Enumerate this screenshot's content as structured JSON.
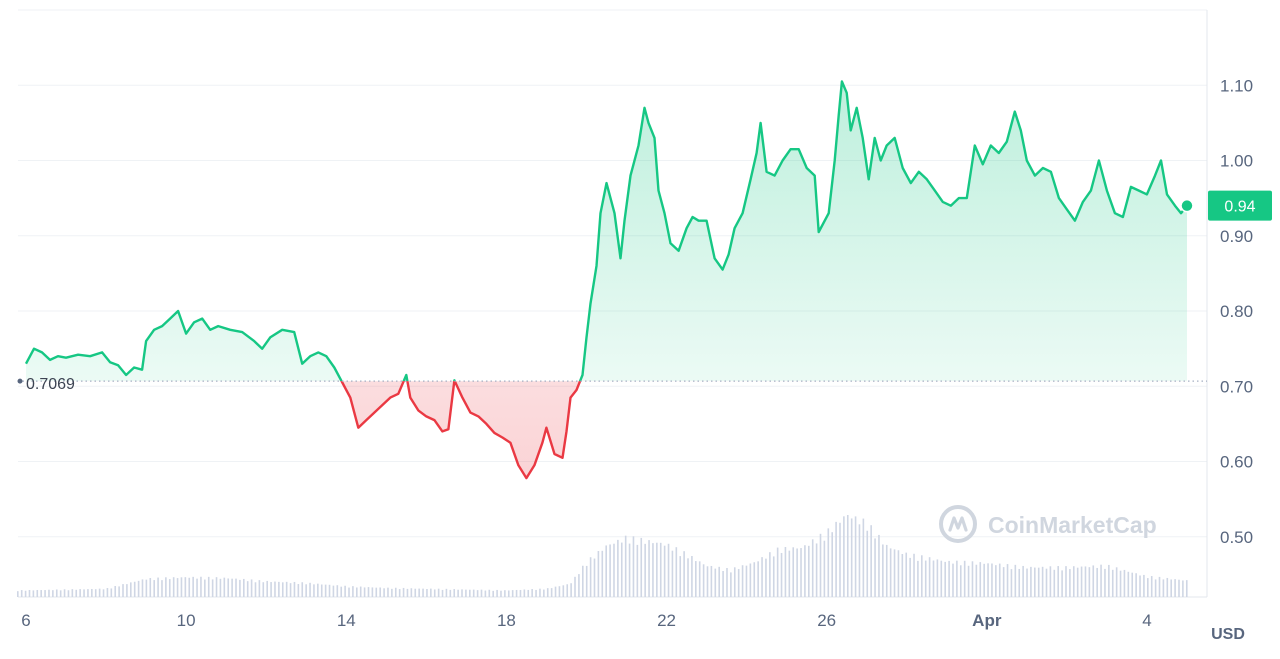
{
  "chart_data": {
    "type": "area",
    "unit_label": "USD",
    "reference_line": {
      "value": 0.7069,
      "label": "0.7069"
    },
    "current_price": {
      "value": 0.94,
      "label": "0.94"
    },
    "ylim": [
      0.42,
      1.2
    ],
    "y_ticks": [
      "0.50",
      "0.60",
      "0.70",
      "0.80",
      "0.90",
      "1.00",
      "1.10"
    ],
    "y_tick_values": [
      0.5,
      0.6,
      0.7,
      0.8,
      0.9,
      1.0,
      1.1
    ],
    "x_ticks": [
      {
        "label": "6",
        "day": 6,
        "bold": false
      },
      {
        "label": "10",
        "day": 10,
        "bold": false
      },
      {
        "label": "14",
        "day": 14,
        "bold": false
      },
      {
        "label": "18",
        "day": 18,
        "bold": false
      },
      {
        "label": "22",
        "day": 22,
        "bold": false
      },
      {
        "label": "26",
        "day": 26,
        "bold": false
      },
      {
        "label": "Apr",
        "day": 30,
        "bold": true
      },
      {
        "label": "4",
        "day": 34,
        "bold": false
      }
    ],
    "xlim": [
      5.8,
      35.5
    ],
    "colors": {
      "up": "#16c784",
      "down": "#ea3943",
      "volume": "#cfd6e4",
      "grid": "#eff2f5"
    },
    "watermark": "CoinMarketCap",
    "price_series": [
      [
        6.0,
        0.73
      ],
      [
        6.2,
        0.75
      ],
      [
        6.4,
        0.745
      ],
      [
        6.6,
        0.735
      ],
      [
        6.8,
        0.74
      ],
      [
        7.0,
        0.738
      ],
      [
        7.3,
        0.742
      ],
      [
        7.6,
        0.74
      ],
      [
        7.9,
        0.745
      ],
      [
        8.1,
        0.732
      ],
      [
        8.3,
        0.728
      ],
      [
        8.5,
        0.715
      ],
      [
        8.7,
        0.725
      ],
      [
        8.9,
        0.722
      ],
      [
        9.0,
        0.76
      ],
      [
        9.2,
        0.775
      ],
      [
        9.4,
        0.78
      ],
      [
        9.6,
        0.79
      ],
      [
        9.8,
        0.8
      ],
      [
        10.0,
        0.77
      ],
      [
        10.2,
        0.785
      ],
      [
        10.4,
        0.79
      ],
      [
        10.6,
        0.775
      ],
      [
        10.8,
        0.78
      ],
      [
        11.1,
        0.775
      ],
      [
        11.4,
        0.772
      ],
      [
        11.7,
        0.76
      ],
      [
        11.9,
        0.75
      ],
      [
        12.1,
        0.765
      ],
      [
        12.4,
        0.775
      ],
      [
        12.7,
        0.772
      ],
      [
        12.9,
        0.73
      ],
      [
        13.1,
        0.74
      ],
      [
        13.3,
        0.745
      ],
      [
        13.5,
        0.74
      ],
      [
        13.7,
        0.725
      ],
      [
        13.9,
        0.705
      ],
      [
        14.1,
        0.685
      ],
      [
        14.3,
        0.645
      ],
      [
        14.5,
        0.655
      ],
      [
        14.7,
        0.665
      ],
      [
        14.9,
        0.675
      ],
      [
        15.1,
        0.685
      ],
      [
        15.3,
        0.69
      ],
      [
        15.5,
        0.715
      ],
      [
        15.6,
        0.685
      ],
      [
        15.8,
        0.668
      ],
      [
        16.0,
        0.66
      ],
      [
        16.2,
        0.655
      ],
      [
        16.4,
        0.64
      ],
      [
        16.55,
        0.643
      ],
      [
        16.7,
        0.708
      ],
      [
        16.9,
        0.685
      ],
      [
        17.1,
        0.665
      ],
      [
        17.3,
        0.66
      ],
      [
        17.5,
        0.65
      ],
      [
        17.7,
        0.638
      ],
      [
        17.9,
        0.632
      ],
      [
        18.1,
        0.625
      ],
      [
        18.3,
        0.595
      ],
      [
        18.5,
        0.578
      ],
      [
        18.7,
        0.595
      ],
      [
        18.9,
        0.625
      ],
      [
        19.0,
        0.645
      ],
      [
        19.2,
        0.61
      ],
      [
        19.4,
        0.605
      ],
      [
        19.5,
        0.64
      ],
      [
        19.6,
        0.685
      ],
      [
        19.75,
        0.695
      ],
      [
        19.9,
        0.715
      ],
      [
        20.0,
        0.765
      ],
      [
        20.1,
        0.81
      ],
      [
        20.25,
        0.86
      ],
      [
        20.35,
        0.93
      ],
      [
        20.5,
        0.97
      ],
      [
        20.7,
        0.93
      ],
      [
        20.85,
        0.87
      ],
      [
        20.95,
        0.92
      ],
      [
        21.1,
        0.98
      ],
      [
        21.3,
        1.02
      ],
      [
        21.45,
        1.07
      ],
      [
        21.55,
        1.05
      ],
      [
        21.7,
        1.03
      ],
      [
        21.8,
        0.96
      ],
      [
        21.95,
        0.93
      ],
      [
        22.1,
        0.89
      ],
      [
        22.3,
        0.88
      ],
      [
        22.5,
        0.91
      ],
      [
        22.65,
        0.925
      ],
      [
        22.8,
        0.92
      ],
      [
        23.0,
        0.92
      ],
      [
        23.2,
        0.87
      ],
      [
        23.4,
        0.855
      ],
      [
        23.55,
        0.875
      ],
      [
        23.7,
        0.91
      ],
      [
        23.9,
        0.93
      ],
      [
        24.1,
        0.975
      ],
      [
        24.25,
        1.01
      ],
      [
        24.35,
        1.05
      ],
      [
        24.5,
        0.985
      ],
      [
        24.7,
        0.98
      ],
      [
        24.9,
        1.0
      ],
      [
        25.1,
        1.015
      ],
      [
        25.3,
        1.015
      ],
      [
        25.5,
        0.99
      ],
      [
        25.7,
        0.98
      ],
      [
        25.8,
        0.905
      ],
      [
        25.9,
        0.915
      ],
      [
        26.05,
        0.93
      ],
      [
        26.2,
        1.0
      ],
      [
        26.3,
        1.06
      ],
      [
        26.38,
        1.105
      ],
      [
        26.5,
        1.09
      ],
      [
        26.6,
        1.04
      ],
      [
        26.75,
        1.07
      ],
      [
        26.9,
        1.03
      ],
      [
        27.05,
        0.975
      ],
      [
        27.2,
        1.03
      ],
      [
        27.35,
        1.0
      ],
      [
        27.5,
        1.02
      ],
      [
        27.7,
        1.03
      ],
      [
        27.9,
        0.99
      ],
      [
        28.1,
        0.97
      ],
      [
        28.3,
        0.985
      ],
      [
        28.5,
        0.975
      ],
      [
        28.7,
        0.96
      ],
      [
        28.9,
        0.945
      ],
      [
        29.1,
        0.94
      ],
      [
        29.3,
        0.95
      ],
      [
        29.5,
        0.95
      ],
      [
        29.7,
        1.02
      ],
      [
        29.9,
        0.995
      ],
      [
        30.1,
        1.02
      ],
      [
        30.3,
        1.01
      ],
      [
        30.5,
        1.025
      ],
      [
        30.7,
        1.065
      ],
      [
        30.85,
        1.04
      ],
      [
        31.0,
        1.0
      ],
      [
        31.2,
        0.98
      ],
      [
        31.4,
        0.99
      ],
      [
        31.6,
        0.985
      ],
      [
        31.8,
        0.95
      ],
      [
        32.0,
        0.935
      ],
      [
        32.2,
        0.92
      ],
      [
        32.4,
        0.945
      ],
      [
        32.6,
        0.96
      ],
      [
        32.8,
        1.0
      ],
      [
        33.0,
        0.96
      ],
      [
        33.2,
        0.93
      ],
      [
        33.4,
        0.925
      ],
      [
        33.6,
        0.965
      ],
      [
        33.8,
        0.96
      ],
      [
        34.0,
        0.955
      ],
      [
        34.2,
        0.98
      ],
      [
        34.35,
        1.0
      ],
      [
        34.5,
        0.955
      ],
      [
        34.7,
        0.94
      ],
      [
        34.85,
        0.93
      ],
      [
        35.0,
        0.94
      ]
    ],
    "volume_series": [
      [
        5.8,
        0.08
      ],
      [
        7.0,
        0.09
      ],
      [
        8.0,
        0.1
      ],
      [
        9.0,
        0.22
      ],
      [
        10.0,
        0.24
      ],
      [
        11.0,
        0.23
      ],
      [
        12.0,
        0.19
      ],
      [
        13.0,
        0.17
      ],
      [
        14.0,
        0.13
      ],
      [
        15.0,
        0.11
      ],
      [
        16.0,
        0.1
      ],
      [
        17.0,
        0.09
      ],
      [
        18.0,
        0.08
      ],
      [
        19.0,
        0.1
      ],
      [
        19.6,
        0.16
      ],
      [
        20.0,
        0.42
      ],
      [
        20.5,
        0.62
      ],
      [
        21.0,
        0.72
      ],
      [
        21.5,
        0.68
      ],
      [
        22.0,
        0.64
      ],
      [
        22.5,
        0.52
      ],
      [
        23.0,
        0.38
      ],
      [
        23.6,
        0.33
      ],
      [
        24.2,
        0.42
      ],
      [
        24.8,
        0.58
      ],
      [
        25.4,
        0.6
      ],
      [
        26.0,
        0.78
      ],
      [
        26.5,
        1.0
      ],
      [
        27.0,
        0.9
      ],
      [
        27.5,
        0.62
      ],
      [
        28.0,
        0.52
      ],
      [
        29.0,
        0.43
      ],
      [
        30.0,
        0.41
      ],
      [
        31.0,
        0.36
      ],
      [
        32.0,
        0.36
      ],
      [
        33.0,
        0.38
      ],
      [
        34.0,
        0.25
      ],
      [
        35.0,
        0.2
      ]
    ]
  }
}
